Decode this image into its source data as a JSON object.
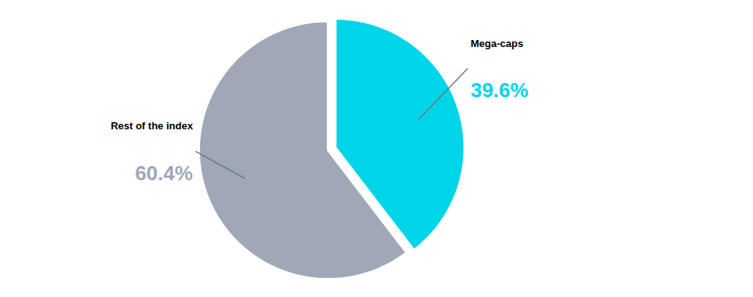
{
  "chart_data": {
    "type": "pie",
    "categories": [
      "Mega-caps",
      "Rest of the index"
    ],
    "values": [
      39.6,
      60.4
    ],
    "colors": [
      "#00d4e8",
      "#a0a8b8"
    ],
    "data_labels": true,
    "value_labels": [
      "39.6%",
      "60.4%"
    ]
  }
}
